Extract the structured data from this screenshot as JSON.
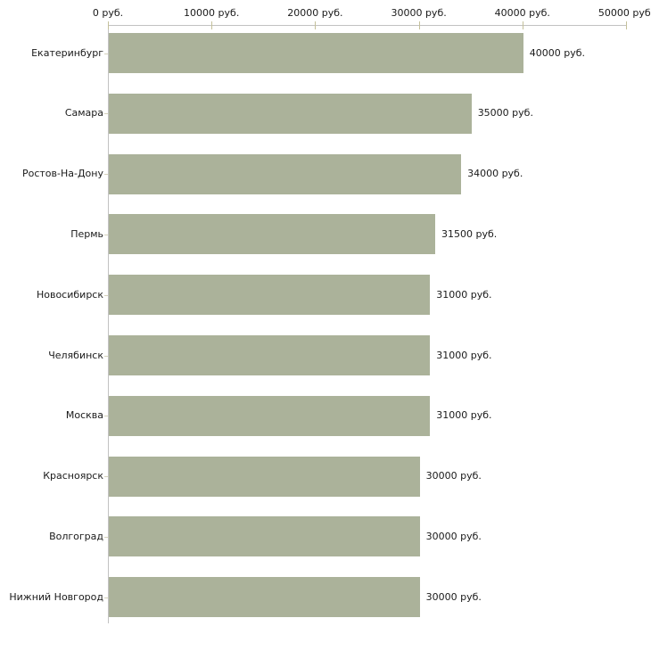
{
  "chart_data": {
    "type": "bar",
    "orientation": "horizontal",
    "title": "",
    "xlabel": "",
    "ylabel": "",
    "unit": "руб.",
    "xlim": [
      0,
      50000
    ],
    "grid": false,
    "legend": "none",
    "x_ticks": [
      {
        "value": 0,
        "label": "0 руб."
      },
      {
        "value": 10000,
        "label": "10000 руб."
      },
      {
        "value": 20000,
        "label": "20000 руб."
      },
      {
        "value": 30000,
        "label": "30000 руб."
      },
      {
        "value": 40000,
        "label": "40000 руб."
      },
      {
        "value": 50000,
        "label": "50000 руб."
      }
    ],
    "categories": [
      "Екатеринбург",
      "Самара",
      "Ростов-На-Дону",
      "Пермь",
      "Новосибирск",
      "Челябинск",
      "Москва",
      "Красноярск",
      "Волгоград",
      "Нижний Новгород"
    ],
    "values": [
      40000,
      35000,
      34000,
      31500,
      31000,
      31000,
      31000,
      30000,
      30000,
      30000
    ],
    "value_labels": [
      "40000 руб.",
      "35000 руб.",
      "34000 руб.",
      "31500 руб.",
      "31000 руб.",
      "31000 руб.",
      "31000 руб.",
      "30000 руб.",
      "30000 руб.",
      "30000 руб."
    ],
    "colors": {
      "bar": "#abb29a",
      "axis_line": "#c2c2c2",
      "axis_tick": "#c5c19b",
      "category_tick": "#d5d2bc",
      "text": "#1a1a1a",
      "background": "#ffffff"
    }
  }
}
